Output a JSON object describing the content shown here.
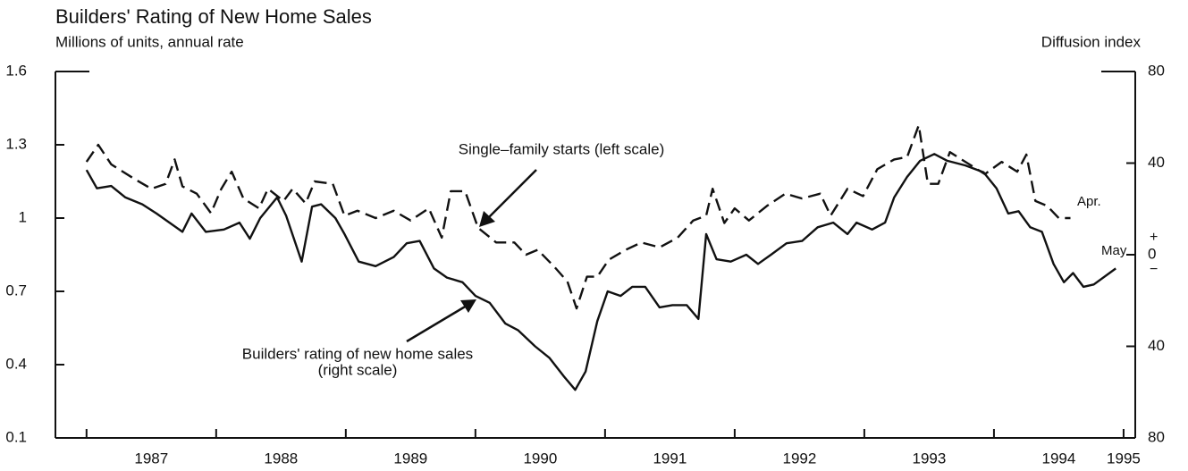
{
  "chart_data": {
    "type": "line",
    "title": "Builders' Rating of New Home Sales",
    "subtitle": "Millions of units, annual rate",
    "y2_label": "Diffusion index",
    "annotations": [
      "Single–family starts (left scale)",
      "Builders' rating of new home sales",
      "(right scale)",
      "Apr.",
      "May"
    ],
    "xlim": [
      1986.76,
      1995.09
    ],
    "xtick_marks": [
      1987,
      1988,
      1989,
      1990,
      1991,
      1992,
      1993,
      1994,
      1995
    ],
    "xticks": [
      {
        "value": 1987.5,
        "label": "1987"
      },
      {
        "value": 1988.5,
        "label": "1988"
      },
      {
        "value": 1989.5,
        "label": "1989"
      },
      {
        "value": 1990.5,
        "label": "1990"
      },
      {
        "value": 1991.5,
        "label": "1991"
      },
      {
        "value": 1992.5,
        "label": "1992"
      },
      {
        "value": 1993.5,
        "label": "1993"
      },
      {
        "value": 1994.5,
        "label": "1994"
      },
      {
        "value": 1995,
        "label": "1995"
      }
    ],
    "ylim": [
      0.1,
      1.6
    ],
    "yticks": [
      0.1,
      0.4,
      0.7,
      1,
      1.3,
      1.6
    ],
    "y2lim": [
      -80,
      80
    ],
    "y2ticks": [
      80,
      40,
      0,
      {
        "value": -40,
        "label": "40"
      },
      {
        "value": -80,
        "label": "80"
      }
    ],
    "series": [
      {
        "name": "Single-family starts",
        "color": "#111111",
        "dashed": true,
        "x": [
          1987.0,
          1987.09,
          1987.19,
          1987.37,
          1987.5,
          1987.61,
          1987.68,
          1987.74,
          1987.85,
          1987.96,
          1988.04,
          1988.12,
          1988.21,
          1988.33,
          1988.4,
          1988.52,
          1988.59,
          1988.69,
          1988.76,
          1988.9,
          1988.99,
          1989.09,
          1989.23,
          1989.37,
          1989.5,
          1989.64,
          1989.74,
          1989.81,
          1989.92,
          1990.02,
          1990.16,
          1990.3,
          1990.39,
          1990.48,
          1990.61,
          1990.71,
          1990.78,
          1990.86,
          1990.94,
          1991.03,
          1991.16,
          1991.28,
          1991.42,
          1991.56,
          1991.68,
          1991.78,
          1991.83,
          1991.92,
          1992.0,
          1992.11,
          1992.25,
          1992.39,
          1992.52,
          1992.66,
          1992.74,
          1992.87,
          1992.99,
          1993.1,
          1993.23,
          1993.33,
          1993.42,
          1993.49,
          1993.57,
          1993.66,
          1993.81,
          1993.93,
          1994.06,
          1994.18,
          1994.25,
          1994.32,
          1994.41,
          1994.5,
          1994.59
        ],
        "values": [
          1.23,
          1.3,
          1.22,
          1.16,
          1.12,
          1.14,
          1.24,
          1.13,
          1.1,
          1.02,
          1.12,
          1.19,
          1.08,
          1.04,
          1.12,
          1.07,
          1.12,
          1.06,
          1.15,
          1.14,
          1.01,
          1.03,
          1.0,
          1.03,
          0.99,
          1.04,
          0.92,
          1.11,
          1.11,
          0.96,
          0.9,
          0.9,
          0.85,
          0.87,
          0.8,
          0.74,
          0.63,
          0.76,
          0.76,
          0.83,
          0.87,
          0.9,
          0.88,
          0.92,
          0.99,
          1.01,
          1.12,
          0.98,
          1.04,
          0.99,
          1.05,
          1.1,
          1.08,
          1.1,
          1.01,
          1.12,
          1.09,
          1.2,
          1.24,
          1.25,
          1.38,
          1.14,
          1.14,
          1.27,
          1.22,
          1.18,
          1.23,
          1.19,
          1.26,
          1.07,
          1.05,
          1.0,
          1.0
        ]
      },
      {
        "name": "Builders' rating of new home sales",
        "color": "#111111",
        "dashed": false,
        "axis": "y2",
        "x": [
          1987.0,
          1987.08,
          1987.19,
          1987.3,
          1987.43,
          1987.54,
          1987.64,
          1987.74,
          1987.81,
          1987.92,
          1988.06,
          1988.18,
          1988.26,
          1988.34,
          1988.47,
          1988.54,
          1988.66,
          1988.74,
          1988.81,
          1988.92,
          1988.99,
          1989.1,
          1989.23,
          1989.37,
          1989.47,
          1989.57,
          1989.68,
          1989.78,
          1989.9,
          1990.0,
          1990.11,
          1990.23,
          1990.33,
          1990.46,
          1990.57,
          1990.68,
          1990.77,
          1990.85,
          1990.94,
          1991.02,
          1991.12,
          1991.21,
          1991.31,
          1991.42,
          1991.52,
          1991.63,
          1991.72,
          1991.78,
          1991.86,
          1991.97,
          1992.09,
          1992.18,
          1992.28,
          1992.4,
          1992.52,
          1992.64,
          1992.76,
          1992.87,
          1992.94,
          1993.06,
          1993.16,
          1993.23,
          1993.33,
          1993.43,
          1993.54,
          1993.64,
          1993.78,
          1993.92,
          1994.02,
          1994.11,
          1994.19,
          1994.28,
          1994.37,
          1994.46,
          1994.54,
          1994.61,
          1994.69,
          1994.77,
          1994.94
        ],
        "values": [
          37,
          29,
          30,
          25,
          22,
          18,
          14,
          10,
          18,
          10,
          11,
          14,
          7,
          16,
          25,
          17,
          -3,
          21,
          22,
          16,
          9,
          -3,
          -5,
          -1,
          5,
          6,
          -6,
          -10,
          -12,
          -18,
          -21,
          -30,
          -33,
          -40,
          -45,
          -53,
          -59,
          -51,
          -29,
          -16,
          -18,
          -14,
          -14,
          -23,
          -22,
          -22,
          -28,
          9,
          -2,
          -3,
          0,
          -4,
          0,
          5,
          6,
          12,
          14,
          9,
          14,
          11,
          14,
          25,
          34,
          41,
          44,
          41,
          39,
          36,
          29,
          18,
          19,
          12,
          10,
          -4,
          -12,
          -8,
          -14,
          -13,
          -6
        ]
      }
    ]
  }
}
